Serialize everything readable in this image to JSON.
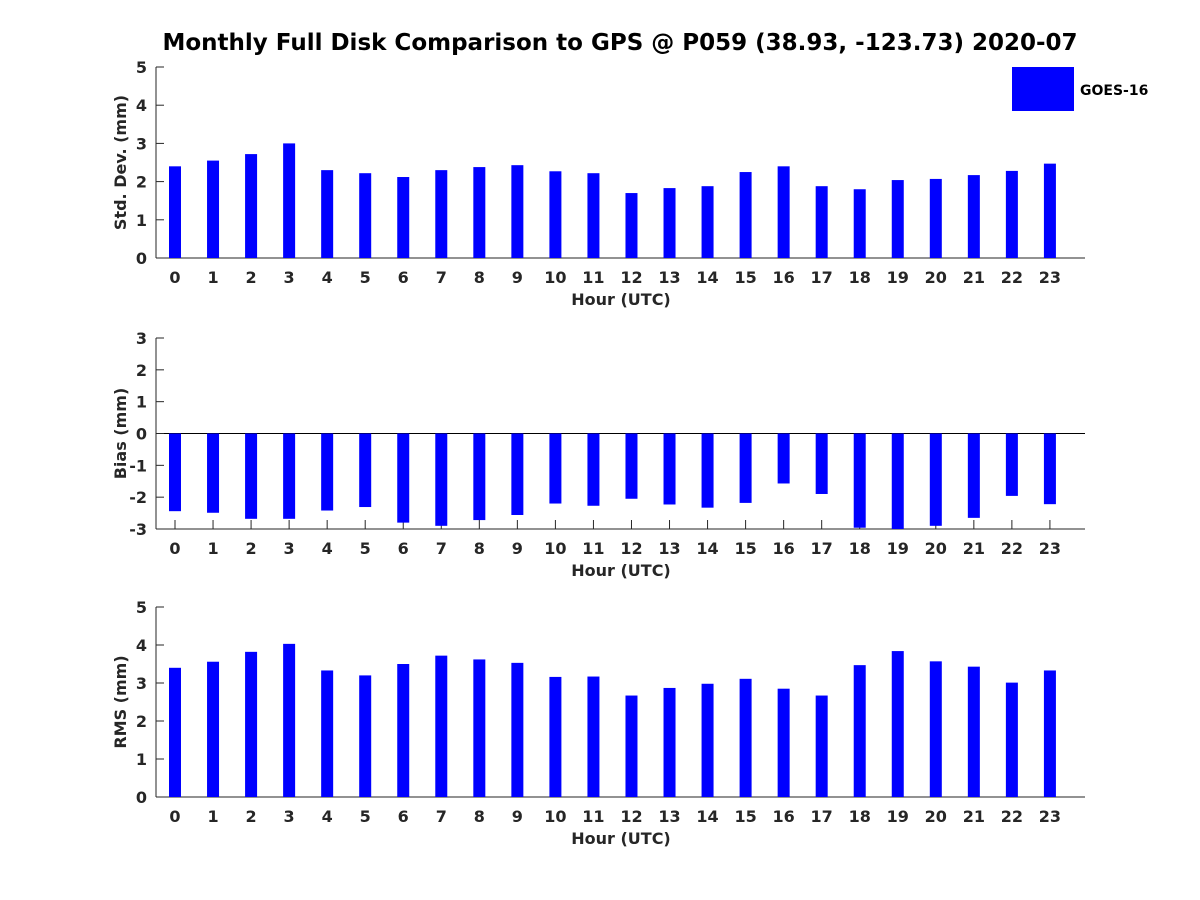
{
  "title": "Monthly Full Disk Comparison to GPS @ P059 (38.93, -123.73) 2020-07",
  "legend": {
    "label": "GOES-16",
    "color": "#0000FF"
  },
  "chart_data": [
    {
      "type": "bar",
      "title": "Monthly Full Disk Comparison to GPS @ P059 (38.93, -123.73) 2020-07",
      "xlabel": "Hour (UTC)",
      "ylabel": "Std. Dev. (mm)",
      "ylim": [
        0,
        5
      ],
      "yticks": [
        0,
        1,
        2,
        3,
        4,
        5
      ],
      "categories": [
        "0",
        "1",
        "2",
        "3",
        "4",
        "5",
        "6",
        "7",
        "8",
        "9",
        "10",
        "11",
        "12",
        "13",
        "14",
        "15",
        "16",
        "17",
        "18",
        "19",
        "20",
        "21",
        "22",
        "23"
      ],
      "series": [
        {
          "name": "GOES-16",
          "color": "#0000FF",
          "values": [
            2.4,
            2.55,
            2.72,
            3.0,
            2.3,
            2.22,
            2.12,
            2.3,
            2.38,
            2.43,
            2.27,
            2.22,
            1.7,
            1.83,
            1.88,
            2.25,
            2.4,
            1.88,
            1.8,
            2.04,
            2.07,
            2.17,
            2.28,
            2.47
          ]
        }
      ],
      "legend": "top-right",
      "grid": false
    },
    {
      "type": "bar",
      "xlabel": "Hour (UTC)",
      "ylabel": "Bias (mm)",
      "ylim": [
        -3,
        3
      ],
      "yticks": [
        -3,
        -2,
        -1,
        0,
        1,
        2,
        3
      ],
      "categories": [
        "0",
        "1",
        "2",
        "3",
        "4",
        "5",
        "6",
        "7",
        "8",
        "9",
        "10",
        "11",
        "12",
        "13",
        "14",
        "15",
        "16",
        "17",
        "18",
        "19",
        "20",
        "21",
        "22",
        "23"
      ],
      "series": [
        {
          "name": "GOES-16",
          "color": "#0000FF",
          "values": [
            -2.44,
            -2.49,
            -2.68,
            -2.68,
            -2.42,
            -2.31,
            -2.8,
            -2.9,
            -2.72,
            -2.56,
            -2.2,
            -2.27,
            -2.05,
            -2.23,
            -2.33,
            -2.18,
            -1.57,
            -1.9,
            -2.96,
            -3.0,
            -2.9,
            -2.65,
            -1.96,
            -2.22
          ]
        }
      ],
      "grid": false
    },
    {
      "type": "bar",
      "xlabel": "Hour (UTC)",
      "ylabel": "RMS (mm)",
      "ylim": [
        0,
        5
      ],
      "yticks": [
        0,
        1,
        2,
        3,
        4,
        5
      ],
      "categories": [
        "0",
        "1",
        "2",
        "3",
        "4",
        "5",
        "6",
        "7",
        "8",
        "9",
        "10",
        "11",
        "12",
        "13",
        "14",
        "15",
        "16",
        "17",
        "18",
        "19",
        "20",
        "21",
        "22",
        "23"
      ],
      "series": [
        {
          "name": "GOES-16",
          "color": "#0000FF",
          "values": [
            3.4,
            3.56,
            3.82,
            4.03,
            3.33,
            3.2,
            3.5,
            3.72,
            3.62,
            3.53,
            3.16,
            3.17,
            2.67,
            2.87,
            2.98,
            3.11,
            2.85,
            2.67,
            3.47,
            3.84,
            3.57,
            3.43,
            3.01,
            3.33
          ]
        }
      ],
      "grid": false
    }
  ]
}
